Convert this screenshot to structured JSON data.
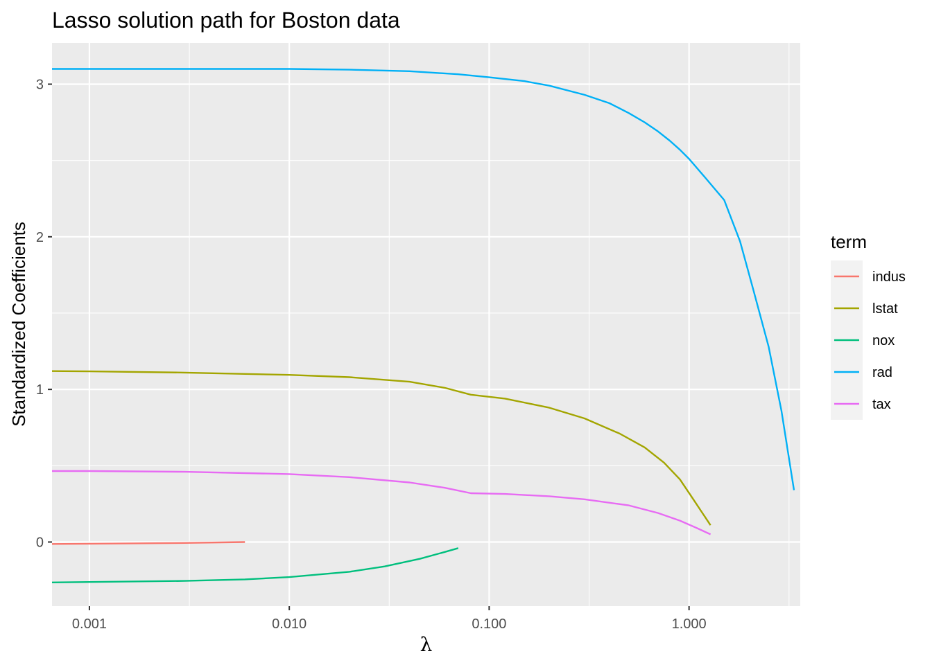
{
  "chart_data": {
    "type": "line",
    "title": "Lasso solution path for Boston data",
    "xlabel": "λ",
    "ylabel": "Standardized Coefficients",
    "x_scale": "log10",
    "xlim": [
      0.00065,
      3.6
    ],
    "ylim": [
      -0.42,
      3.27
    ],
    "x_ticks": [
      0.001,
      0.01,
      0.1,
      1
    ],
    "x_tick_labels": [
      "0.001",
      "0.010",
      "0.100",
      "1.000"
    ],
    "y_ticks": [
      0,
      1,
      2,
      3
    ],
    "y_tick_labels": [
      "0",
      "1",
      "2",
      "3"
    ],
    "grid": true,
    "legend": {
      "title": "term",
      "position": "right"
    },
    "series": [
      {
        "name": "indus",
        "color": "#F8766D",
        "x": [
          0.00065,
          0.001,
          0.003,
          0.006
        ],
        "y": [
          -0.013,
          -0.011,
          -0.006,
          0.0
        ]
      },
      {
        "name": "lstat",
        "color": "#A3A500",
        "x": [
          0.00065,
          0.001,
          0.003,
          0.01,
          0.02,
          0.04,
          0.06,
          0.081,
          0.12,
          0.2,
          0.3,
          0.45,
          0.6,
          0.75,
          0.9,
          1.05,
          1.28
        ],
        "y": [
          1.12,
          1.118,
          1.11,
          1.095,
          1.08,
          1.05,
          1.01,
          0.965,
          0.94,
          0.88,
          0.81,
          0.71,
          0.62,
          0.52,
          0.41,
          0.28,
          0.11
        ]
      },
      {
        "name": "nox",
        "color": "#00BF7D",
        "x": [
          0.00065,
          0.001,
          0.003,
          0.006,
          0.01,
          0.02,
          0.03,
          0.045,
          0.06,
          0.07
        ],
        "y": [
          -0.265,
          -0.262,
          -0.255,
          -0.245,
          -0.23,
          -0.195,
          -0.16,
          -0.11,
          -0.065,
          -0.04
        ]
      },
      {
        "name": "rad",
        "color": "#00B0F6",
        "x": [
          0.00065,
          0.001,
          0.003,
          0.01,
          0.02,
          0.04,
          0.07,
          0.1,
          0.15,
          0.2,
          0.3,
          0.4,
          0.5,
          0.6,
          0.7,
          0.8,
          0.9,
          1.0,
          1.2,
          1.5,
          1.8,
          2.1,
          2.5,
          2.9,
          3.35
        ],
        "y": [
          3.1,
          3.1,
          3.1,
          3.1,
          3.095,
          3.085,
          3.065,
          3.045,
          3.02,
          2.99,
          2.93,
          2.875,
          2.81,
          2.75,
          2.69,
          2.63,
          2.57,
          2.51,
          2.39,
          2.24,
          1.97,
          1.65,
          1.28,
          0.86,
          0.34
        ]
      },
      {
        "name": "tax",
        "color": "#E76BF3",
        "x": [
          0.00065,
          0.001,
          0.003,
          0.01,
          0.02,
          0.04,
          0.06,
          0.081,
          0.12,
          0.2,
          0.3,
          0.5,
          0.7,
          0.9,
          1.1,
          1.28
        ],
        "y": [
          0.465,
          0.465,
          0.46,
          0.445,
          0.425,
          0.39,
          0.355,
          0.32,
          0.315,
          0.3,
          0.28,
          0.24,
          0.19,
          0.14,
          0.09,
          0.05
        ]
      }
    ]
  }
}
